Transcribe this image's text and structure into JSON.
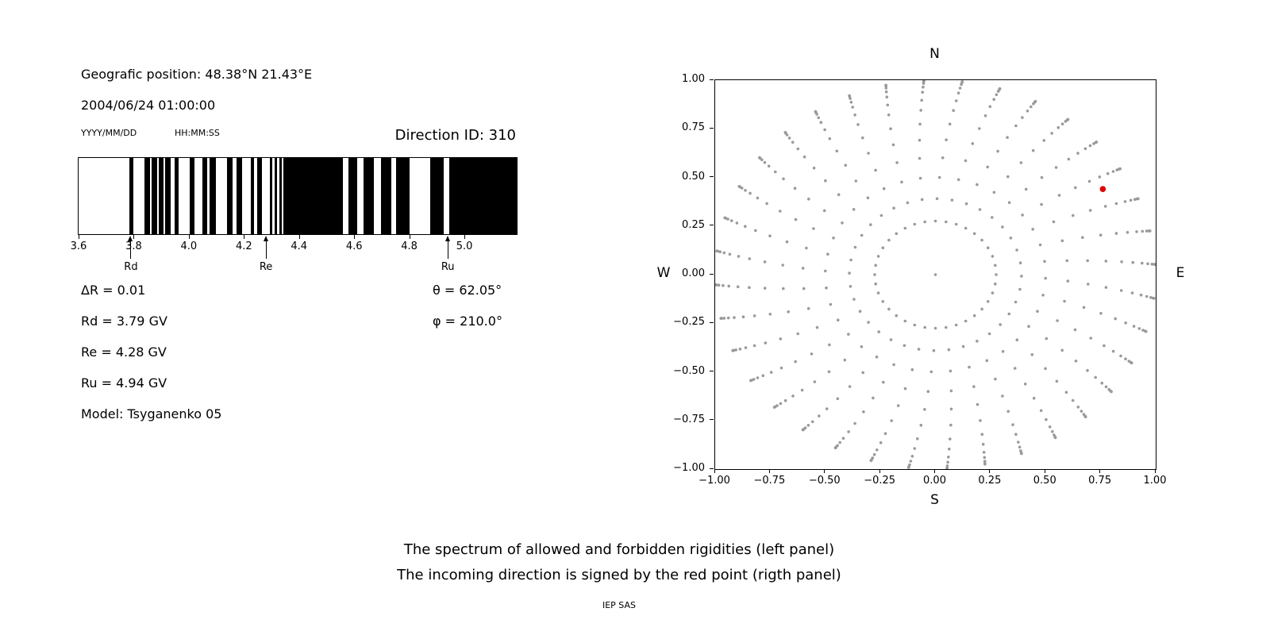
{
  "info_panel": {
    "geographic_position": "Geografic position: 48.38°N 21.43°E",
    "datetime": "2004/06/24 01:00:00",
    "date_format_hint": "YYYY/MM/DD",
    "time_format_hint": "HH:MM:SS",
    "direction_id": "Direction ID: 310",
    "delta_r": "ΔR = 0.01",
    "rd": "Rd = 3.79 GV",
    "re": "Re = 4.28 GV",
    "ru": "Ru = 4.94 GV",
    "model": "Model: Tsyganenko 05",
    "theta": "θ = 62.05°",
    "phi": "φ = 210.0°"
  },
  "captions": {
    "line1": "The spectrum of allowed and forbidden rigidities (left panel)",
    "line2": "The incoming direction is signed by the red point (rigth panel)",
    "credit": "IEP SAS"
  },
  "chart_data": [
    {
      "id": "rigidity-spectrum",
      "type": "bar",
      "title": "",
      "xlabel": "",
      "ylabel": "",
      "xlim": [
        3.6,
        5.19
      ],
      "xticks": [
        3.6,
        3.8,
        4.0,
        4.2,
        4.4,
        4.6,
        4.8,
        5.0
      ],
      "xtick_labels": [
        "3.6",
        "3.8",
        "4.0",
        "4.2",
        "4.4",
        "4.6",
        "4.8",
        "5.0"
      ],
      "band_color": "#000000",
      "background_color": "#ffffff",
      "bands_gv": [
        [
          3.785,
          3.8
        ],
        [
          3.838,
          3.858
        ],
        [
          3.864,
          3.884
        ],
        [
          3.89,
          3.908
        ],
        [
          3.914,
          3.934
        ],
        [
          3.948,
          3.962
        ],
        [
          4.003,
          4.02
        ],
        [
          4.05,
          4.068
        ],
        [
          4.076,
          4.098
        ],
        [
          4.138,
          4.158
        ],
        [
          4.172,
          4.192
        ],
        [
          4.224,
          4.238
        ],
        [
          4.249,
          4.264
        ],
        [
          4.294,
          4.304
        ],
        [
          4.311,
          4.321
        ],
        [
          4.328,
          4.337
        ],
        [
          4.343,
          4.56
        ],
        [
          4.578,
          4.612
        ],
        [
          4.634,
          4.672
        ],
        [
          4.698,
          4.734
        ],
        [
          4.752,
          4.8
        ],
        [
          4.875,
          4.925
        ],
        [
          4.945,
          5.19
        ]
      ],
      "delta_r_gv": 0.01,
      "markers": [
        {
          "label": "Rd",
          "value_gv": 3.79
        },
        {
          "label": "Re",
          "value_gv": 4.28
        },
        {
          "label": "Ru",
          "value_gv": 4.94
        }
      ]
    },
    {
      "id": "incoming-direction-map",
      "type": "scatter",
      "title": "",
      "xlabel": "",
      "ylabel": "",
      "grid": "off",
      "legend": "none",
      "xlim": [
        -1,
        1
      ],
      "ylim": [
        -1,
        1
      ],
      "xticks": [
        -1,
        -0.75,
        -0.5,
        -0.25,
        0,
        0.25,
        0.5,
        0.75,
        1
      ],
      "xtick_labels": [
        "−1.00",
        "−0.75",
        "−0.50",
        "−0.25",
        "0.00",
        "0.25",
        "0.50",
        "0.75",
        "1.00"
      ],
      "yticks": [
        1,
        0.75,
        0.5,
        0.25,
        0,
        -0.25,
        -0.5,
        -0.75,
        -1
      ],
      "ytick_labels": [
        "1.00",
        "0.75",
        "0.50",
        "0.25",
        "0.00",
        "−0.25",
        "−0.50",
        "−0.75",
        "−1.00"
      ],
      "compass": {
        "top": "N",
        "bottom": "S",
        "left": "W",
        "right": "E"
      },
      "grid_dots": {
        "color": "#9a9a9a",
        "azimuth_start_deg": 0,
        "azimuth_step_deg": 10,
        "zenith_angles_deg": [
          16,
          23,
          30,
          37,
          44,
          51,
          58,
          64,
          70,
          75,
          80,
          84,
          87,
          89
        ],
        "radius_rule": "r = sin(zenith)",
        "center_dot": true,
        "curvature_deg_at_edge": 7,
        "dot_radius_px": 1.8
      },
      "red_point": {
        "x": 0.76,
        "y": 0.44,
        "color": "#e00000",
        "radius_px": 3.8
      }
    }
  ]
}
